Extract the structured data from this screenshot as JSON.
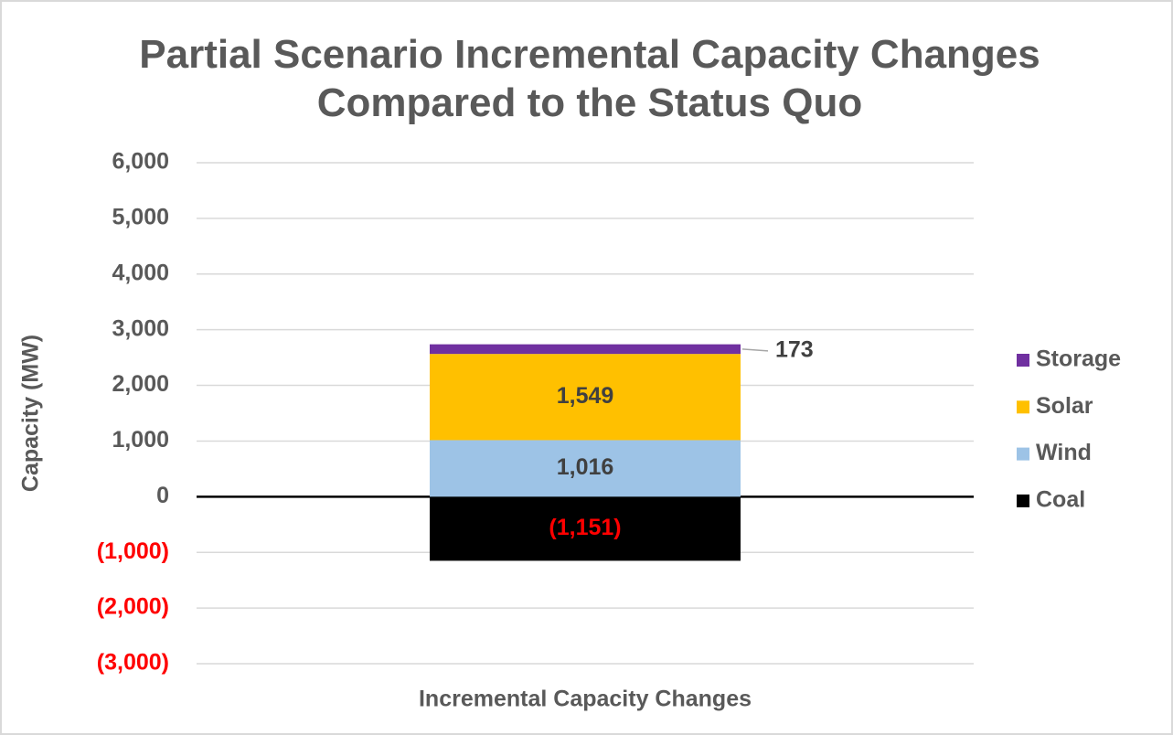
{
  "chart_data": {
    "type": "stacked_bar",
    "title": "Partial Scenario Incremental Capacity Changes Compared to the Status Quo",
    "y_label": "Capacity (MW)",
    "categories": [
      "Incremental Capacity Changes"
    ],
    "series": [
      {
        "name": "Coal",
        "color": "#000000",
        "values": [
          -1151
        ],
        "value_labels": [
          "(1,151)"
        ]
      },
      {
        "name": "Wind",
        "color": "#9dc3e6",
        "values": [
          1016
        ],
        "value_labels": [
          "1,016"
        ]
      },
      {
        "name": "Solar",
        "color": "#ffc000",
        "values": [
          1549
        ],
        "value_labels": [
          "1,549"
        ]
      },
      {
        "name": "Storage",
        "color": "#7030a0",
        "values": [
          173
        ],
        "value_labels": [
          "173"
        ]
      }
    ],
    "ylim": [
      -3000,
      6000
    ],
    "yticks": [
      {
        "value": -3000,
        "label": "(3,000)"
      },
      {
        "value": -2000,
        "label": "(2,000)"
      },
      {
        "value": -1000,
        "label": "(1,000)"
      },
      0,
      {
        "value": 1000,
        "label": "1,000"
      },
      {
        "value": 2000,
        "label": "2,000"
      },
      {
        "value": 3000,
        "label": "3,000"
      },
      {
        "value": 4000,
        "label": "4,000"
      },
      {
        "value": 5000,
        "label": "5,000"
      },
      {
        "value": 6000,
        "label": "6,000"
      }
    ],
    "grid": true,
    "legend": "right"
  }
}
